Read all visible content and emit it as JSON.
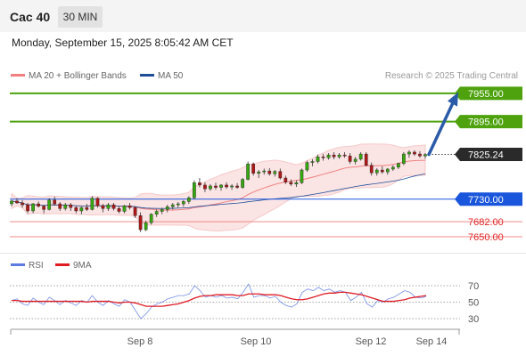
{
  "header": {
    "instrument": "Cac 40",
    "timeframe": "30 MIN"
  },
  "timestamp": "Monday, September 15, 2025 8:05:42 AM CET",
  "legend": {
    "ma20": {
      "label": "MA 20 + Bollinger Bands",
      "color": "#f08080"
    },
    "ma50": {
      "label": "MA 50",
      "color": "#1f4e99"
    },
    "rsi": {
      "label": "RSI",
      "color": "#5b7be0"
    },
    "ma9": {
      "label": "9MA",
      "color": "#e01b24"
    }
  },
  "credit": "Research © 2025 Trading Central",
  "chart_data": [
    {
      "type": "candlestick",
      "price_range": [
        7633,
        7970
      ],
      "x_labels": [
        "Sep 8",
        "Sep 10",
        "Sep 12",
        "Sep 14"
      ],
      "levels": [
        {
          "value": 7955.0,
          "label": "7955.00",
          "kind": "resistance",
          "color": "#4ea20e"
        },
        {
          "value": 7895.0,
          "label": "7895.00",
          "kind": "resistance",
          "color": "#4ea20e"
        },
        {
          "value": 7825.24,
          "label": "7825.24",
          "kind": "last",
          "color": "#222222"
        },
        {
          "value": 7730.0,
          "label": "7730.00",
          "kind": "pivot",
          "color": "#1a56db"
        },
        {
          "value": 7682.0,
          "label": "7682.00",
          "kind": "support",
          "color": "#e02424"
        },
        {
          "value": 7650.0,
          "label": "7650.00",
          "kind": "support",
          "color": "#e02424"
        }
      ],
      "forecast_arrow": {
        "from": 7825,
        "to": 7950
      },
      "candles": [
        [
          7720,
          7728,
          7715,
          7726
        ],
        [
          7726,
          7732,
          7720,
          7722
        ],
        [
          7722,
          7728,
          7712,
          7718
        ],
        [
          7718,
          7722,
          7700,
          7705
        ],
        [
          7705,
          7722,
          7700,
          7720
        ],
        [
          7720,
          7725,
          7712,
          7715
        ],
        [
          7715,
          7718,
          7700,
          7708
        ],
        [
          7708,
          7732,
          7706,
          7728
        ],
        [
          7728,
          7735,
          7716,
          7720
        ],
        [
          7720,
          7724,
          7705,
          7710
        ],
        [
          7710,
          7722,
          7706,
          7718
        ],
        [
          7718,
          7722,
          7705,
          7712
        ],
        [
          7712,
          7715,
          7700,
          7705
        ],
        [
          7705,
          7714,
          7698,
          7712
        ],
        [
          7712,
          7720,
          7705,
          7708
        ],
        [
          7708,
          7736,
          7706,
          7732
        ],
        [
          7732,
          7734,
          7712,
          7716
        ],
        [
          7716,
          7720,
          7702,
          7710
        ],
        [
          7710,
          7722,
          7705,
          7718
        ],
        [
          7718,
          7722,
          7706,
          7710
        ],
        [
          7710,
          7715,
          7700,
          7704
        ],
        [
          7704,
          7718,
          7700,
          7716
        ],
        [
          7716,
          7722,
          7708,
          7712
        ],
        [
          7712,
          7715,
          7690,
          7695
        ],
        [
          7695,
          7702,
          7660,
          7665
        ],
        [
          7665,
          7684,
          7662,
          7680
        ],
        [
          7680,
          7700,
          7676,
          7698
        ],
        [
          7698,
          7708,
          7692,
          7704
        ],
        [
          7704,
          7712,
          7698,
          7708
        ],
        [
          7708,
          7718,
          7702,
          7714
        ],
        [
          7714,
          7722,
          7708,
          7718
        ],
        [
          7718,
          7724,
          7712,
          7720
        ],
        [
          7720,
          7728,
          7714,
          7725
        ],
        [
          7725,
          7736,
          7720,
          7733
        ],
        [
          7733,
          7770,
          7730,
          7765
        ],
        [
          7765,
          7775,
          7755,
          7760
        ],
        [
          7760,
          7766,
          7745,
          7752
        ],
        [
          7752,
          7762,
          7748,
          7758
        ],
        [
          7758,
          7765,
          7750,
          7755
        ],
        [
          7755,
          7762,
          7748,
          7760
        ],
        [
          7760,
          7766,
          7752,
          7756
        ],
        [
          7756,
          7762,
          7750,
          7758
        ],
        [
          7758,
          7764,
          7752,
          7755
        ],
        [
          7755,
          7775,
          7752,
          7772
        ],
        [
          7772,
          7810,
          7770,
          7805
        ],
        [
          7805,
          7808,
          7780,
          7785
        ],
        [
          7785,
          7792,
          7775,
          7788
        ],
        [
          7788,
          7795,
          7782,
          7790
        ],
        [
          7790,
          7796,
          7780,
          7784
        ],
        [
          7784,
          7792,
          7778,
          7789
        ],
        [
          7789,
          7795,
          7772,
          7775
        ],
        [
          7775,
          7780,
          7762,
          7766
        ],
        [
          7766,
          7772,
          7758,
          7762
        ],
        [
          7762,
          7770,
          7756,
          7765
        ],
        [
          7765,
          7795,
          7762,
          7792
        ],
        [
          7792,
          7812,
          7788,
          7808
        ],
        [
          7808,
          7815,
          7800,
          7810
        ],
        [
          7810,
          7825,
          7806,
          7820
        ],
        [
          7820,
          7826,
          7812,
          7818
        ],
        [
          7818,
          7828,
          7814,
          7824
        ],
        [
          7824,
          7830,
          7815,
          7820
        ],
        [
          7820,
          7828,
          7816,
          7824
        ],
        [
          7824,
          7830,
          7818,
          7822
        ],
        [
          7822,
          7828,
          7805,
          7810
        ],
        [
          7810,
          7820,
          7804,
          7815
        ],
        [
          7815,
          7830,
          7812,
          7826
        ],
        [
          7826,
          7830,
          7800,
          7802
        ],
        [
          7802,
          7808,
          7780,
          7786
        ],
        [
          7786,
          7796,
          7780,
          7792
        ],
        [
          7792,
          7800,
          7784,
          7788
        ],
        [
          7788,
          7796,
          7782,
          7794
        ],
        [
          7794,
          7802,
          7790,
          7798
        ],
        [
          7798,
          7808,
          7794,
          7806
        ],
        [
          7806,
          7830,
          7802,
          7826
        ],
        [
          7826,
          7834,
          7818,
          7830
        ],
        [
          7830,
          7834,
          7822,
          7826
        ],
        [
          7826,
          7832,
          7818,
          7822
        ],
        [
          7822,
          7828,
          7816,
          7825
        ]
      ]
    },
    {
      "type": "line",
      "title": "RSI",
      "ylim": [
        30,
        70
      ],
      "y_ticks": [
        70,
        50,
        30
      ],
      "series": [
        {
          "name": "RSI",
          "values": [
            52,
            54,
            48,
            46,
            55,
            50,
            47,
            56,
            52,
            47,
            52,
            49,
            46,
            52,
            50,
            58,
            50,
            46,
            52,
            48,
            45,
            53,
            50,
            40,
            30,
            36,
            44,
            48,
            50,
            54,
            56,
            58,
            58,
            60,
            70,
            64,
            56,
            58,
            56,
            58,
            55,
            56,
            54,
            62,
            72,
            56,
            58,
            58,
            55,
            57,
            50,
            46,
            44,
            48,
            62,
            66,
            64,
            68,
            64,
            66,
            62,
            64,
            62,
            52,
            56,
            62,
            48,
            44,
            52,
            50,
            54,
            56,
            60,
            64,
            62,
            56,
            55,
            57
          ]
        },
        {
          "name": "9MA",
          "values": [
            52,
            52,
            51,
            51,
            51,
            51,
            51,
            51,
            51,
            51,
            51,
            51,
            51,
            51,
            50,
            51,
            51,
            51,
            51,
            50,
            49,
            50,
            50,
            49,
            47,
            45,
            45,
            45,
            45,
            46,
            47,
            48,
            50,
            52,
            55,
            57,
            58,
            58,
            59,
            59,
            59,
            59,
            58,
            58,
            60,
            60,
            60,
            59,
            59,
            59,
            58,
            56,
            54,
            53,
            53,
            54,
            56,
            58,
            60,
            61,
            61,
            62,
            62,
            61,
            60,
            59,
            57,
            55,
            53,
            51,
            51,
            51,
            52,
            53,
            55,
            56,
            57,
            58
          ]
        }
      ]
    }
  ]
}
